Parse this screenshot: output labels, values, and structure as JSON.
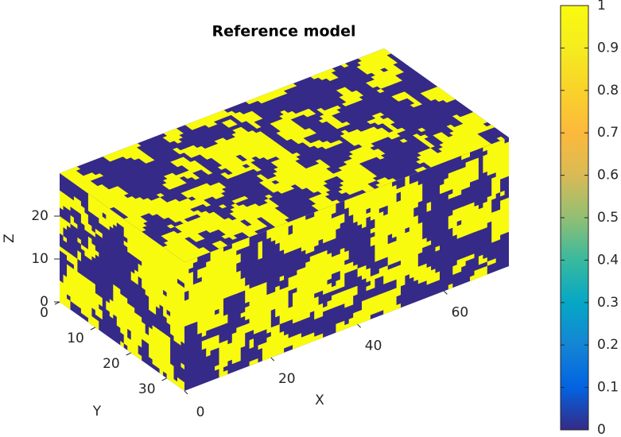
{
  "chart_data": {
    "type": "voxel",
    "title": "Reference model",
    "xlabel": "X",
    "ylabel": "Y",
    "zlabel": "Z",
    "xlim": [
      0,
      75
    ],
    "ylim": [
      0,
      35
    ],
    "zlim": [
      0,
      30
    ],
    "xticks": [
      0,
      20,
      40,
      60
    ],
    "yticks": [
      0,
      10,
      20,
      30
    ],
    "zticks": [
      0,
      10,
      20
    ],
    "colors": [
      "#352a87",
      "#f9fb0e"
    ],
    "colorbar": {
      "lim": [
        0,
        1
      ],
      "ticks": [
        0,
        0.1,
        0.2,
        0.3,
        0.4,
        0.5,
        0.6,
        0.7,
        0.8,
        0.9,
        1
      ],
      "colormap": [
        "#352a87",
        "#0363e1",
        "#1485d4",
        "#06a7c6",
        "#38b99e",
        "#92bf73",
        "#d9ba56",
        "#fcb93c",
        "#f9d22a",
        "#f5ec1f",
        "#f9fb0e"
      ]
    }
  }
}
